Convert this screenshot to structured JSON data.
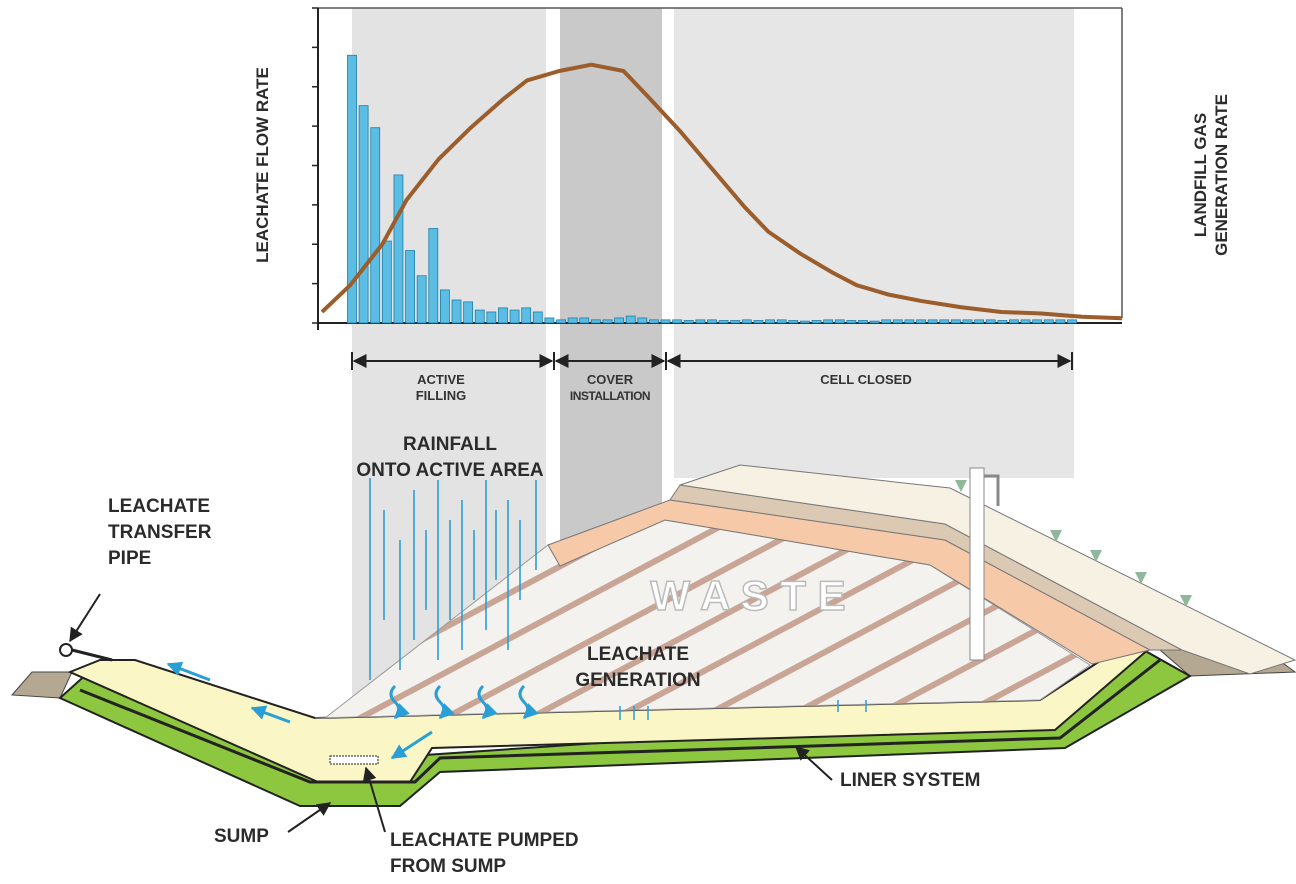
{
  "chart_data": {
    "type": "bar",
    "y_label": "LEACHATE FLOW RATE",
    "y2_label": [
      "LANDFILL GAS",
      "GENERATION RATE"
    ],
    "values": [
      85,
      69,
      62,
      26,
      47,
      23,
      15,
      30,
      10.5,
      7.3,
      6.7,
      4.1,
      3.5,
      4.8,
      4.1,
      4.8,
      3.5,
      1.6,
      1,
      1.6,
      1.6,
      1,
      1,
      1.6,
      2.2,
      1.6,
      1,
      1,
      1,
      0.8,
      1,
      1,
      0.8,
      0.8,
      1,
      0.8,
      1,
      1,
      0.8,
      0.6,
      0.8,
      1,
      1,
      0.8,
      0.8,
      0.6,
      1,
      1,
      1,
      1,
      1,
      1,
      1,
      1,
      1,
      1,
      0.8,
      1,
      1,
      1,
      1,
      1,
      1
    ],
    "color": "#5bbde4",
    "ylim": [
      0,
      100
    ],
    "yticks": [
      0,
      12.5,
      25,
      37.5,
      50,
      62.5,
      75,
      87.5,
      100
    ],
    "xlim": [
      0,
      100
    ],
    "y2lim": [
      0,
      100
    ],
    "gas_curve": {
      "axis": "y2",
      "color": "#9a5d2b",
      "x": [
        0.5,
        4,
        8,
        11,
        15,
        19,
        23,
        26,
        30,
        34,
        38,
        41,
        45,
        49,
        53,
        56,
        60,
        64,
        67,
        71,
        75,
        80,
        85,
        90,
        95,
        100
      ],
      "values": [
        3.5,
        12,
        25,
        39,
        52,
        62,
        71,
        77,
        80,
        82,
        80,
        72,
        61,
        49,
        37,
        29,
        22,
        16,
        12,
        9,
        7,
        5,
        3.5,
        3,
        2,
        1.5
      ]
    },
    "phases": [
      [
        "ACTIVE",
        "FILLING"
      ],
      [
        "COVER",
        "INSTALLATION"
      ],
      [
        "CELL CLOSED"
      ]
    ]
  },
  "labels": {
    "rainfall": [
      "RAINFALL",
      "ONTO ACTIVE AREA"
    ],
    "transfer_pipe": [
      "LEACHATE",
      "TRANSFER",
      "PIPE"
    ],
    "generation": [
      "LEACHATE",
      "GENERATION"
    ],
    "waste": "W A S T E",
    "sump": "SUMP",
    "pumped": [
      "LEACHATE PUMPED",
      "FROM SUMP"
    ],
    "liner": "LINER SYSTEM"
  }
}
